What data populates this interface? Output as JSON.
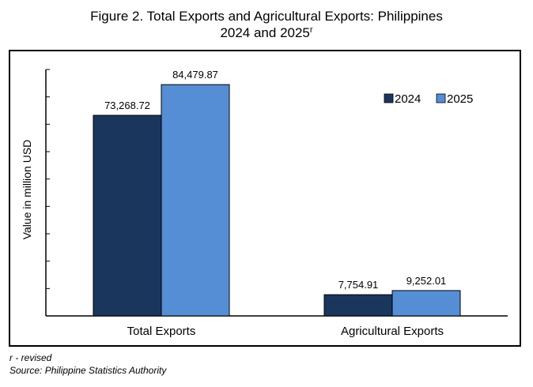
{
  "title": {
    "line1": "Figure 2. Total Exports and Agricultural Exports: Philippines",
    "line2": "2024 and 2025",
    "line2_superscript": "r"
  },
  "chart_data": {
    "type": "bar",
    "categories": [
      "Total Exports",
      "Agricultural Exports"
    ],
    "series": [
      {
        "name": "2024",
        "values": [
          73268.72,
          7754.91
        ],
        "labels": [
          "73,268.72",
          "7,754.91"
        ],
        "color": "#1b365d"
      },
      {
        "name": "2025",
        "values": [
          84479.87,
          9252.01
        ],
        "labels": [
          "84,479.87",
          "9,252.01"
        ],
        "color": "#558ed5"
      }
    ],
    "ylabel": "Value in million USD",
    "xlabel": "",
    "ylim": [
      0,
      90000
    ],
    "y_tick_step": 10000,
    "y_tick_labels_shown": false,
    "grid": false,
    "legend_position": "top-right"
  },
  "footnotes": {
    "revised": "r - revised",
    "source": "Source: Philippine Statistics Authority"
  }
}
